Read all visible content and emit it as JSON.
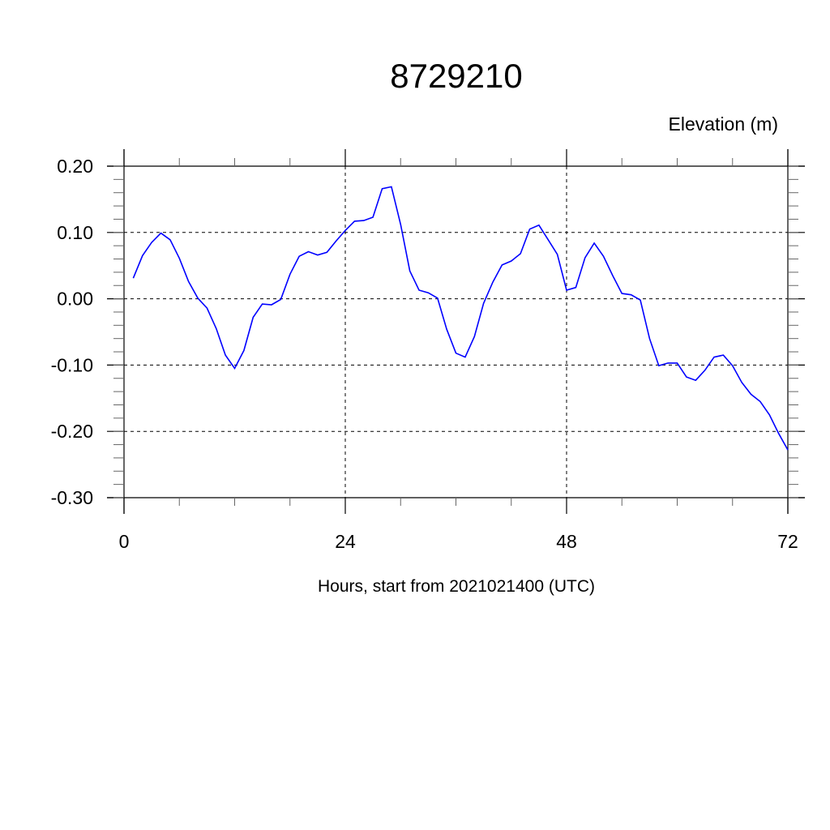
{
  "chart_data": {
    "type": "line",
    "title": "8729210",
    "ylabel": "Elevation (m)",
    "xlabel": "Hours, start from 2021021400 (UTC)",
    "xlim": [
      0,
      72
    ],
    "ylim": [
      -0.3,
      0.2
    ],
    "x_ticks": [
      0,
      24,
      48,
      72
    ],
    "x_tick_labels": [
      "0",
      "24",
      "48",
      "72"
    ],
    "y_ticks": [
      0.2,
      0.1,
      0.0,
      -0.1,
      -0.2,
      -0.3
    ],
    "y_tick_labels": [
      "0.20",
      "0.10",
      "0.00",
      "-0.10",
      "-0.20",
      "-0.30"
    ],
    "grid": true,
    "line_color": "#0000ff",
    "series": [
      {
        "x": [
          1,
          2,
          3,
          4,
          5,
          6,
          7,
          8,
          9,
          10,
          11,
          12,
          13,
          14,
          15,
          16,
          17,
          18,
          19,
          20,
          21,
          22,
          23,
          24,
          25,
          26,
          27,
          28,
          29,
          30,
          31,
          32,
          33,
          34,
          35,
          36,
          37,
          38,
          39,
          40,
          41,
          42,
          43,
          44,
          45,
          46,
          47,
          48,
          49,
          50,
          51,
          52,
          53,
          54,
          55,
          56,
          57,
          58,
          59,
          60,
          61,
          62,
          63,
          64,
          65,
          66,
          67,
          68,
          69,
          70,
          71,
          72
        ],
        "y": [
          0.031,
          0.065,
          0.085,
          0.099,
          0.089,
          0.061,
          0.026,
          0.001,
          -0.014,
          -0.045,
          -0.085,
          -0.105,
          -0.078,
          -0.028,
          -0.008,
          -0.009,
          -0.001,
          0.037,
          0.064,
          0.071,
          0.066,
          0.07,
          0.087,
          0.103,
          0.117,
          0.118,
          0.123,
          0.166,
          0.169,
          0.112,
          0.042,
          0.013,
          0.009,
          0.001,
          -0.046,
          -0.082,
          -0.088,
          -0.057,
          -0.007,
          0.025,
          0.051,
          0.057,
          0.068,
          0.105,
          0.111,
          0.089,
          0.067,
          0.013,
          0.017,
          0.062,
          0.084,
          0.064,
          0.035,
          0.008,
          0.006,
          -0.002,
          -0.06,
          -0.101,
          -0.097,
          -0.097,
          -0.118,
          -0.123,
          -0.108,
          -0.088,
          -0.085,
          -0.101,
          -0.126,
          -0.144,
          -0.155,
          -0.175,
          -0.203,
          -0.228
        ]
      }
    ]
  }
}
